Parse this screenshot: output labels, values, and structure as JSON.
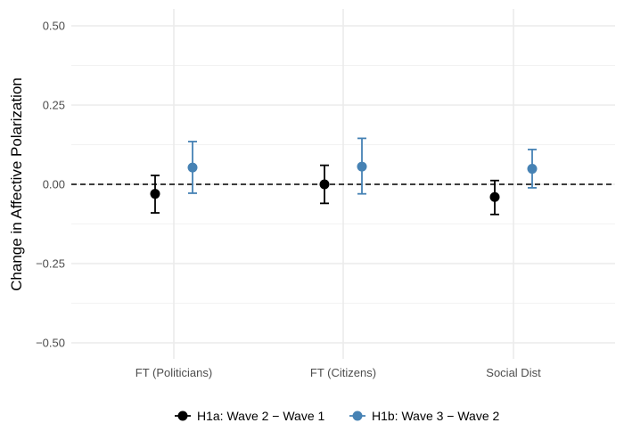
{
  "chart_data": {
    "type": "errorbar",
    "ylabel": "Change in Affective Polarization",
    "xlabel": "",
    "categories": [
      "FT (Politicians)",
      "FT (Citizens)",
      "Social Dist"
    ],
    "ylim": [
      -0.55,
      0.55
    ],
    "yticks": [
      -0.5,
      -0.25,
      0.0,
      0.25,
      0.5
    ],
    "ytick_labels": [
      "−0.50",
      "−0.25",
      "0.00",
      "0.25",
      "0.50"
    ],
    "reference_line": 0,
    "grid": true,
    "legend_position": "bottom",
    "series": [
      {
        "name": "H1a: Wave 2 − Wave 1",
        "color": "#000000",
        "estimates": [
          -0.03,
          0.0,
          -0.04
        ],
        "lower": [
          -0.09,
          -0.06,
          -0.095
        ],
        "upper": [
          0.028,
          0.06,
          0.012
        ]
      },
      {
        "name": "H1b: Wave 3 − Wave 2",
        "color": "#4682b4",
        "estimates": [
          0.053,
          0.056,
          0.049
        ],
        "lower": [
          -0.028,
          -0.03,
          -0.011
        ],
        "upper": [
          0.135,
          0.145,
          0.11
        ]
      }
    ]
  }
}
